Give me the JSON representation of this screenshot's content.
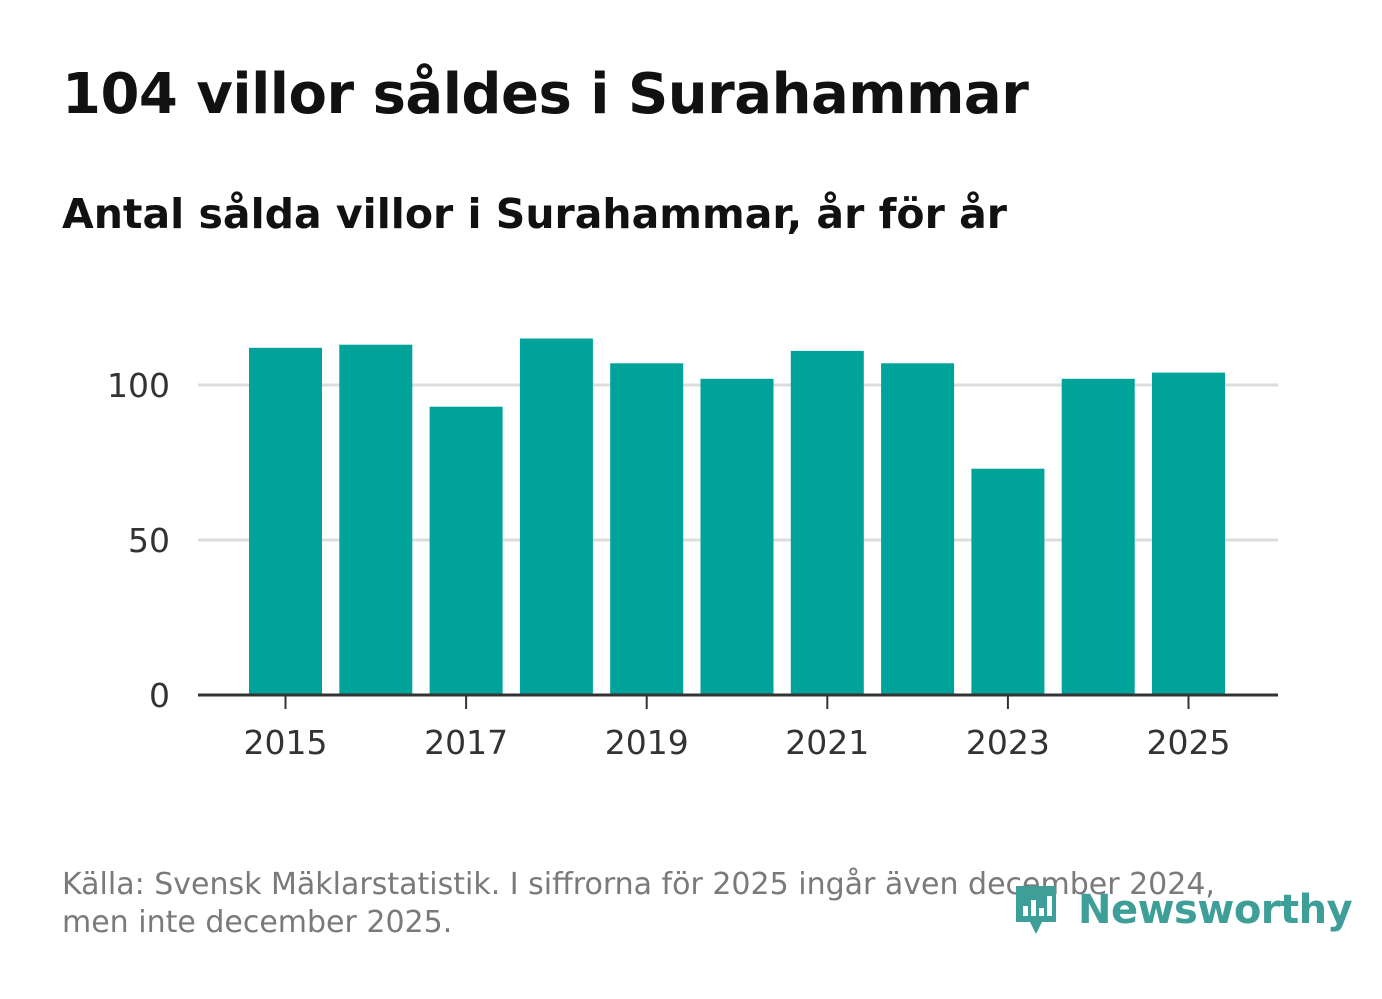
{
  "header": {
    "title": "104 villor såldes i Surahammar",
    "subtitle": "Antal sålda villor i Surahammar, år för år"
  },
  "footer": {
    "source": "Källa: Svensk Mäklarstatistik. I siffrorna för 2025 ingår även december 2024, men inte december 2025.",
    "brand": "Newsworthy"
  },
  "colors": {
    "bar": "#00a39a",
    "grid": "#dddddd",
    "axis": "#333333",
    "brand": "#3d9f97"
  },
  "chart_data": {
    "type": "bar",
    "categories": [
      "2015",
      "2016",
      "2017",
      "2018",
      "2019",
      "2020",
      "2021",
      "2022",
      "2023",
      "2024",
      "2025"
    ],
    "values": [
      112,
      113,
      93,
      115,
      107,
      102,
      111,
      107,
      73,
      102,
      104
    ],
    "title": "104 villor såldes i Surahammar",
    "subtitle": "Antal sålda villor i Surahammar, år för år",
    "xlabel": "",
    "ylabel": "",
    "ylim": [
      0,
      120
    ],
    "yticks": [
      0,
      50,
      100
    ],
    "xticks": [
      "2015",
      "2017",
      "2019",
      "2021",
      "2023",
      "2025"
    ],
    "grid": "horizontal",
    "legend": "none"
  }
}
